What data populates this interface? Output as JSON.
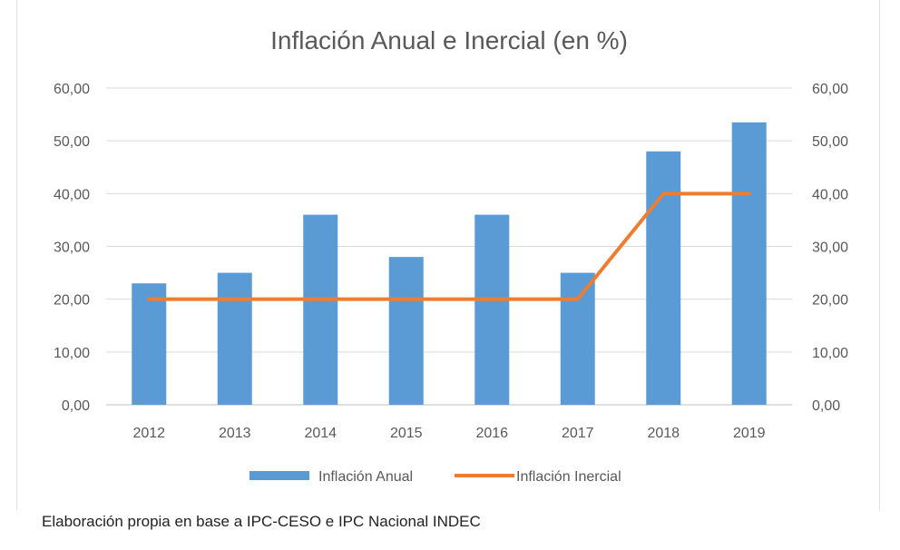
{
  "chart_data": {
    "type": "bar+line",
    "title": "Inflación Anual e Inercial (en %)",
    "categories": [
      "2012",
      "2013",
      "2014",
      "2015",
      "2016",
      "2017",
      "2018",
      "2019"
    ],
    "series": [
      {
        "name": "Inflación Anual",
        "type": "bar",
        "axis": "left",
        "color": "#5B9BD5",
        "values": [
          23,
          25,
          36,
          28,
          36,
          25,
          48,
          53.5
        ]
      },
      {
        "name": "Inflación Inercial",
        "type": "line",
        "axis": "right",
        "color": "#ED7D31",
        "values": [
          20,
          20,
          20,
          20,
          20,
          20,
          40,
          40
        ]
      }
    ],
    "ylim": [
      0,
      60
    ],
    "y_ticks": [
      "0,00",
      "10,00",
      "20,00",
      "30,00",
      "40,00",
      "50,00",
      "60,00"
    ],
    "y2_ticks": [
      "0,00",
      "10,00",
      "20,00",
      "30,00",
      "40,00",
      "50,00",
      "60,00"
    ],
    "grid": true,
    "legend_position": "bottom"
  },
  "caption": "Elaboración propia en base a IPC-CESO e IPC Nacional INDEC"
}
